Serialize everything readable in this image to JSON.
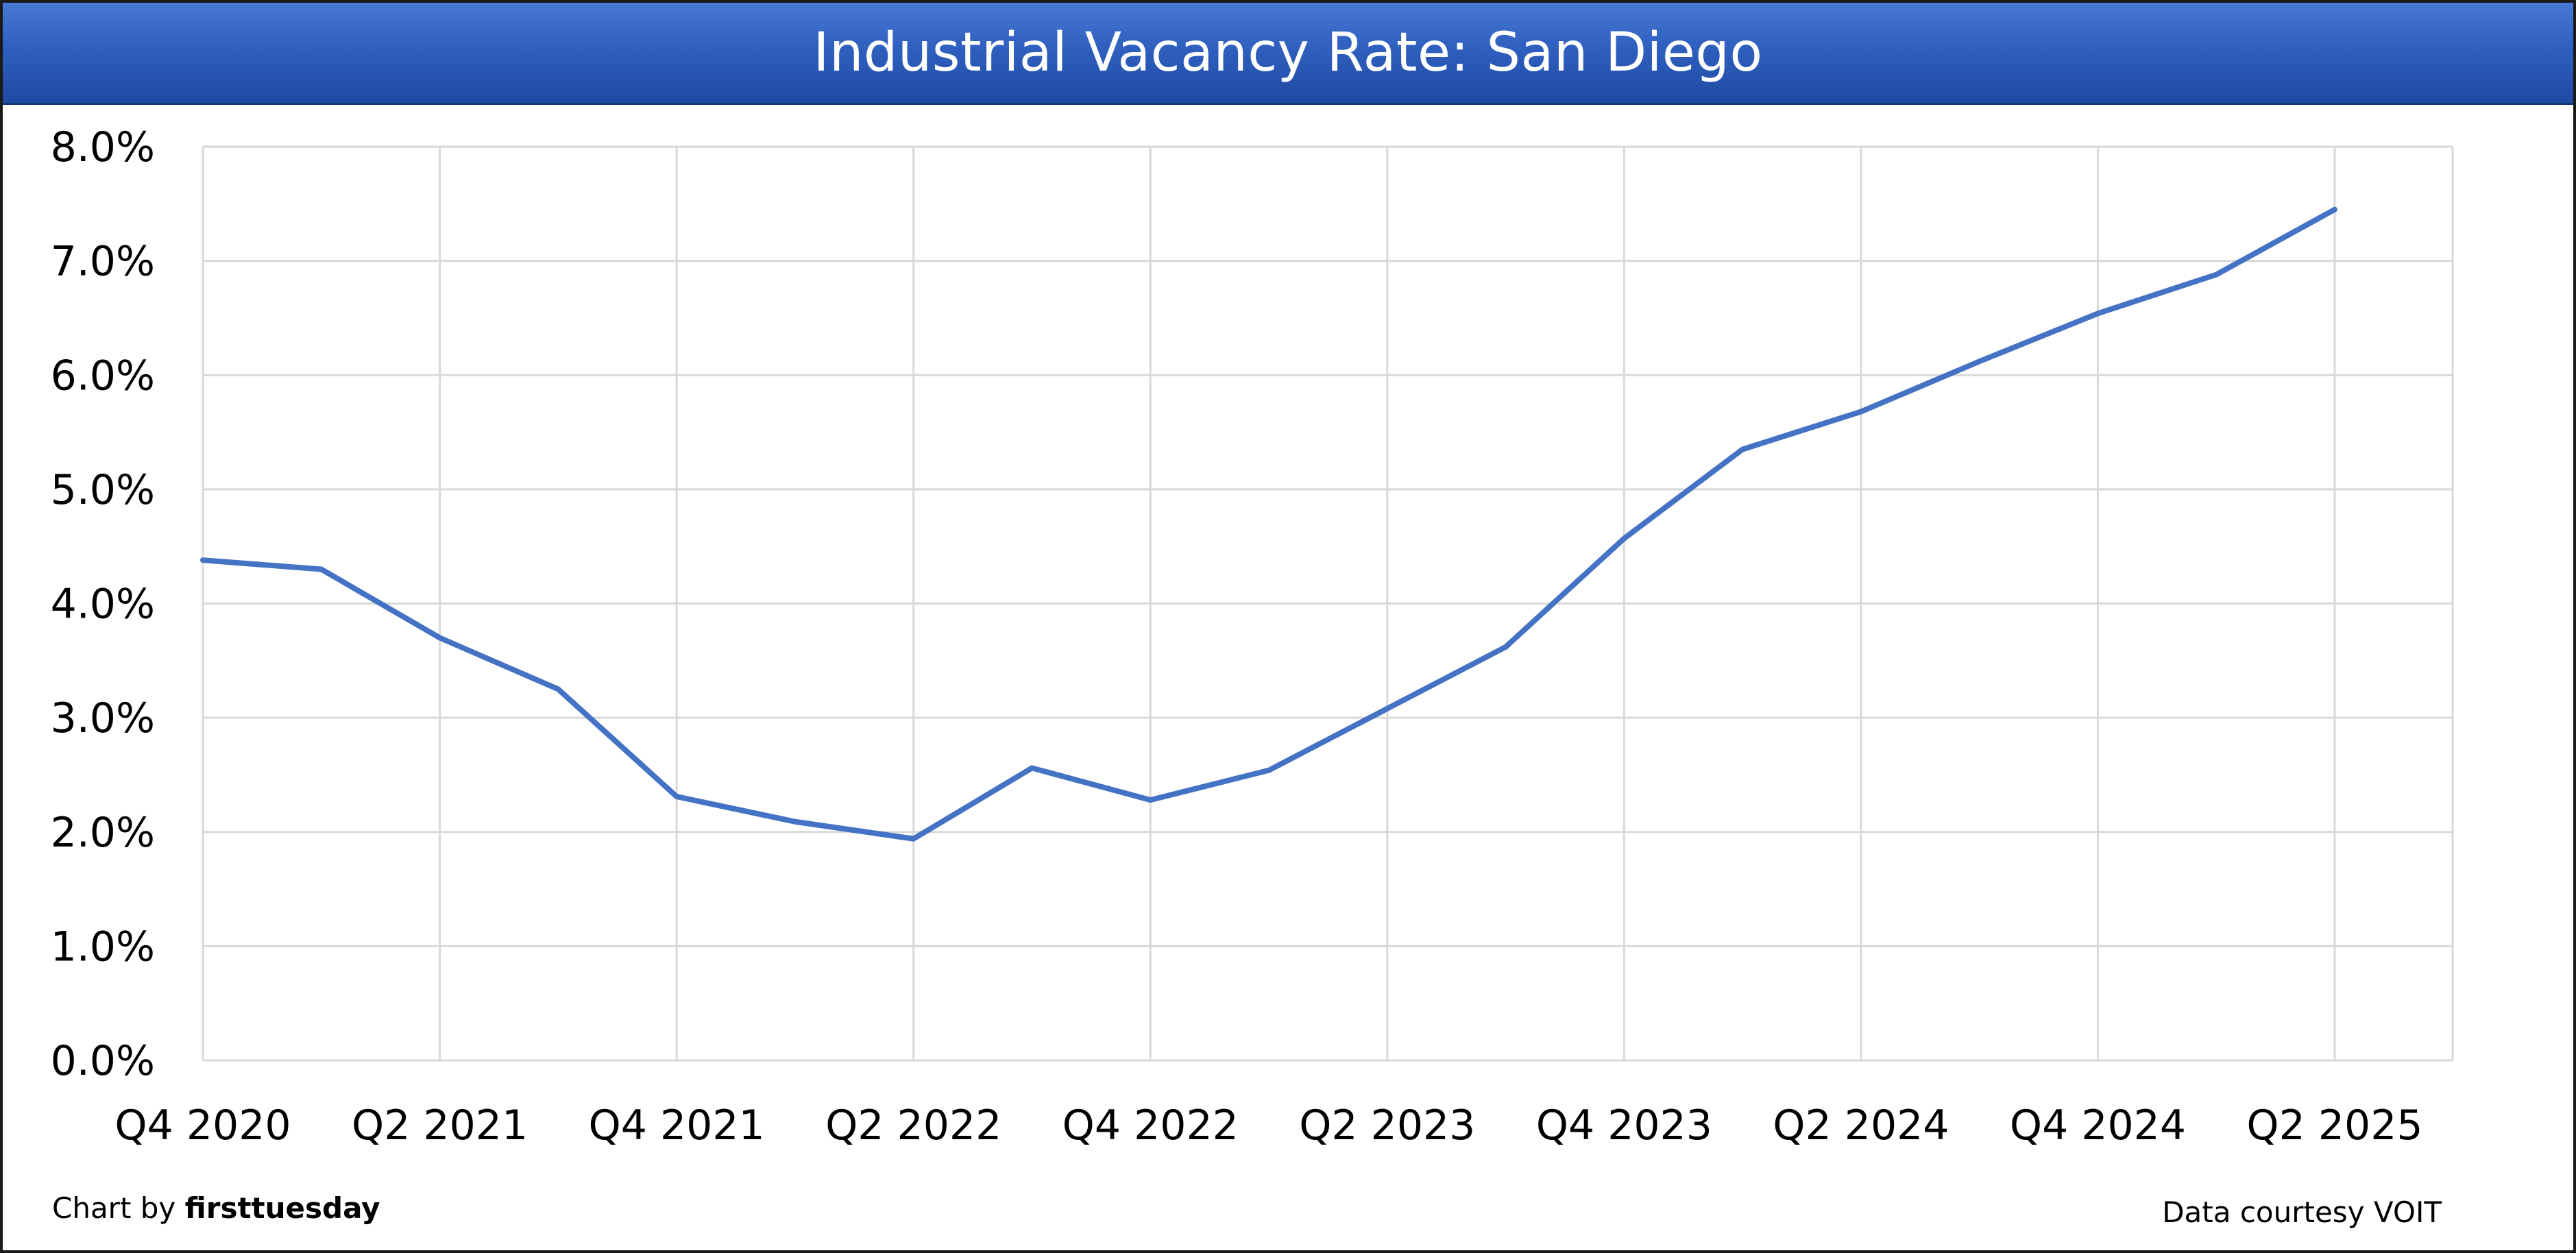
{
  "chart_data": {
    "type": "line",
    "title": "Industrial Vacancy Rate: San Diego",
    "xlabel": "",
    "ylabel": "",
    "ylim": [
      0,
      8
    ],
    "y_ticks": [
      "0.0%",
      "1.0%",
      "2.0%",
      "3.0%",
      "4.0%",
      "5.0%",
      "6.0%",
      "7.0%",
      "8.0%"
    ],
    "x_tick_labels": [
      "Q4 2020",
      "Q2 2021",
      "Q4 2021",
      "Q2 2022",
      "Q4 2022",
      "Q2 2023",
      "Q4 2023",
      "Q2 2024",
      "Q4 2024",
      "Q2 2025"
    ],
    "categories": [
      "Q4 2020",
      "Q1 2021",
      "Q2 2021",
      "Q3 2021",
      "Q4 2021",
      "Q1 2022",
      "Q2 2022",
      "Q3 2022",
      "Q4 2022",
      "Q1 2023",
      "Q2 2023",
      "Q3 2023",
      "Q4 2023",
      "Q1 2024",
      "Q2 2024",
      "Q3 2024",
      "Q4 2024",
      "Q1 2025",
      "Q2 2025"
    ],
    "series": [
      {
        "values": [
          4.38,
          4.3,
          3.7,
          3.25,
          2.31,
          2.09,
          1.94,
          2.56,
          2.28,
          2.54,
          3.08,
          3.62,
          4.57,
          5.35,
          5.68,
          6.12,
          6.54,
          6.88,
          7.45
        ],
        "color": "#4472c4"
      }
    ],
    "grid": true,
    "colors": {
      "line": "#4472c4",
      "grid": "#d9d9d9",
      "title_bar": "#2f5fbf"
    }
  },
  "footer": {
    "left_prefix": "Chart by ",
    "left_brand": "firsttuesday",
    "right": "Data courtesy VOIT"
  }
}
